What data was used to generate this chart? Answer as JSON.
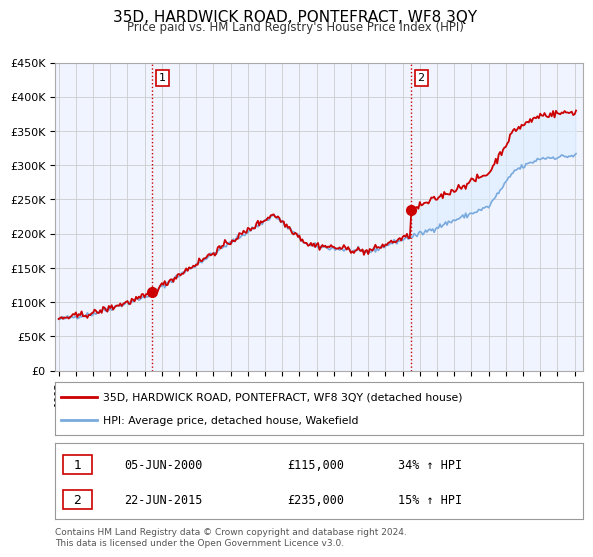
{
  "title": "35D, HARDWICK ROAD, PONTEFRACT, WF8 3QY",
  "subtitle": "Price paid vs. HM Land Registry's House Price Index (HPI)",
  "ylim": [
    0,
    450000
  ],
  "xlim_start": 1994.8,
  "xlim_end": 2025.5,
  "yticks": [
    0,
    50000,
    100000,
    150000,
    200000,
    250000,
    300000,
    350000,
    400000,
    450000
  ],
  "ytick_labels": [
    "£0",
    "£50K",
    "£100K",
    "£150K",
    "£200K",
    "£250K",
    "£300K",
    "£350K",
    "£400K",
    "£450K"
  ],
  "xticks": [
    1995,
    1996,
    1997,
    1998,
    1999,
    2000,
    2001,
    2002,
    2003,
    2004,
    2005,
    2006,
    2007,
    2008,
    2009,
    2010,
    2011,
    2012,
    2013,
    2014,
    2015,
    2016,
    2017,
    2018,
    2019,
    2020,
    2021,
    2022,
    2023,
    2024,
    2025
  ],
  "red_line_color": "#cc0000",
  "blue_line_color": "#7aaadd",
  "fill_color": "#ddeeff",
  "vline_color": "#cc0000",
  "vline_x1": 2000.44,
  "vline_x2": 2015.47,
  "marker1_x": 2000.44,
  "marker1_y": 115000,
  "marker2_x": 2015.47,
  "marker2_y": 235000,
  "sale1_date": "05-JUN-2000",
  "sale1_price": "£115,000",
  "sale1_hpi": "34% ↑ HPI",
  "sale2_date": "22-JUN-2015",
  "sale2_price": "£235,000",
  "sale2_hpi": "15% ↑ HPI",
  "legend_line1": "35D, HARDWICK ROAD, PONTEFRACT, WF8 3QY (detached house)",
  "legend_line2": "HPI: Average price, detached house, Wakefield",
  "footer": "Contains HM Land Registry data © Crown copyright and database right 2024.\nThis data is licensed under the Open Government Licence v3.0.",
  "background_color": "#ffffff",
  "plot_bg_color": "#f0f4ff",
  "grid_color": "#cccccc"
}
